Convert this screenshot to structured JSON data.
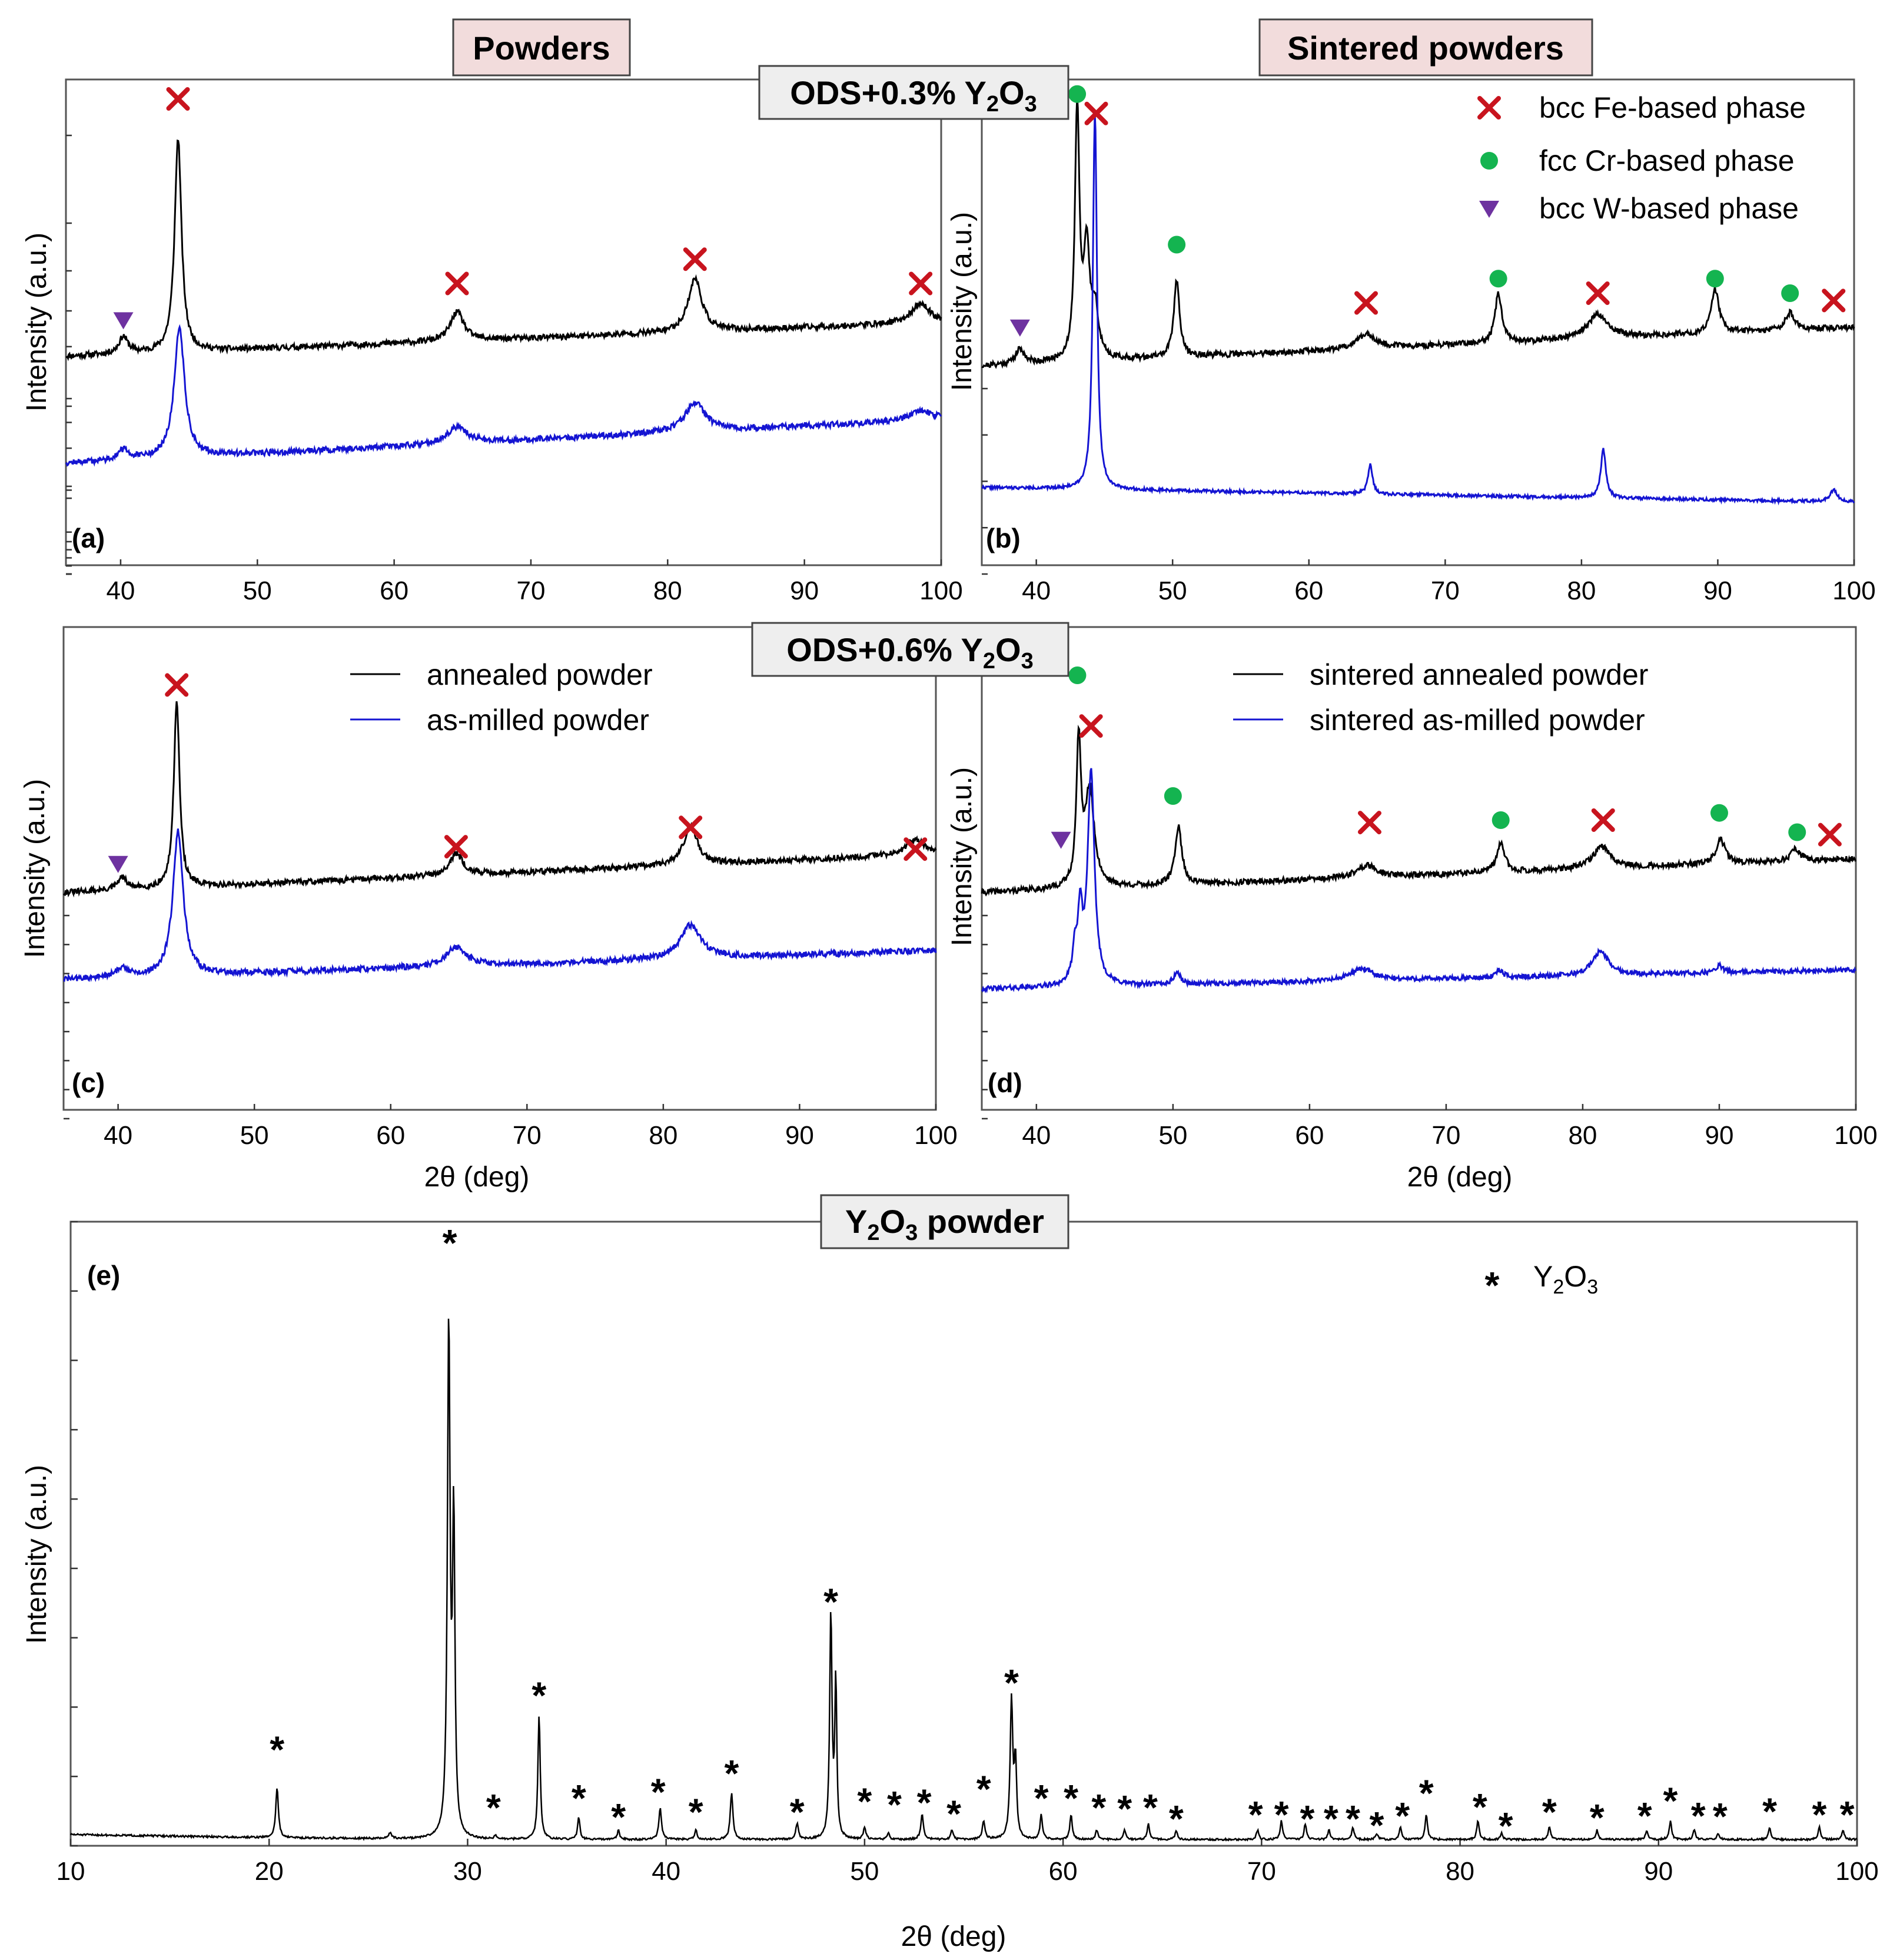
{
  "header_boxes": {
    "powders": "Powders",
    "sintered": "Sintered powders",
    "ods03": {
      "prefix": "ODS+0.3% Y",
      "sub1": "2",
      "mid": "O",
      "sub2": "3"
    },
    "ods06": {
      "prefix": "ODS+0.6% Y",
      "sub1": "2",
      "mid": "O",
      "sub2": "3"
    },
    "y2o3": {
      "prefix": "Y",
      "sub1": "2",
      "mid": "O",
      "sub2": "3",
      "suffix": " powder"
    }
  },
  "colors": {
    "black_series": "#000000",
    "blue_series": "#1414d2",
    "bcc_fe": "#c8141e",
    "fcc_cr": "#14b450",
    "bcc_w": "#6e32a0",
    "header_pink": "#f2dcdc",
    "header_gray": "#eeeeee"
  },
  "phase_legend": {
    "bcc_fe": "bcc Fe-based phase",
    "fcc_cr": "fcc Cr-based phase",
    "bcc_w": "bcc W-based phase"
  },
  "series_legend_c": {
    "black": "annealed powder",
    "blue": "as-milled powder"
  },
  "series_legend_d": {
    "black": "sintered annealed powder",
    "blue": "sintered as-milled powder"
  },
  "y2o3_legend": {
    "symbol": "*",
    "prefix": "Y",
    "sub1": "2",
    "mid": "O",
    "sub2": "3"
  },
  "chart_data": [
    {
      "id": "a",
      "panel_label": "(a)",
      "type": "line",
      "ylabel": "Intensity (a.u.)",
      "xlabel": "",
      "xlim": [
        36,
        100
      ],
      "xticks": [
        40,
        50,
        60,
        70,
        80,
        90,
        100
      ],
      "ylim": [
        0,
        100
      ],
      "series": [
        {
          "name": "annealed powder",
          "color": "black",
          "baseline": [
            [
              36,
              43
            ],
            [
              100,
              50
            ]
          ],
          "noise": 0.6,
          "seed": 11,
          "peaks": [
            [
              40.2,
              3.5,
              0.4
            ],
            [
              44.2,
              44,
              0.3
            ],
            [
              64.6,
              6,
              0.6
            ],
            [
              82.0,
              11,
              0.6
            ],
            [
              98.5,
              4,
              0.8
            ]
          ]
        },
        {
          "name": "as-milled powder",
          "color": "blue",
          "baseline": [
            [
              36,
              21
            ],
            [
              100,
              30
            ]
          ],
          "noise": 0.6,
          "seed": 12,
          "peaks": [
            [
              40.2,
              2,
              0.5
            ],
            [
              44.3,
              27,
              0.45
            ],
            [
              64.6,
              3.5,
              0.9
            ],
            [
              82.0,
              6,
              0.9
            ],
            [
              98.5,
              2,
              1.0
            ]
          ]
        }
      ],
      "markers": [
        {
          "phase": "bcc_w",
          "x": 40.2,
          "y": 50.5
        },
        {
          "phase": "bcc_fe",
          "x": 44.2,
          "y": 96
        },
        {
          "phase": "bcc_fe",
          "x": 64.6,
          "y": 58
        },
        {
          "phase": "bcc_fe",
          "x": 82.0,
          "y": 63
        },
        {
          "phase": "bcc_fe",
          "x": 98.5,
          "y": 58
        }
      ]
    },
    {
      "id": "b",
      "panel_label": "(b)",
      "type": "line",
      "ylabel": "Intensity (a.u.)",
      "xlabel": "",
      "xlim": [
        36,
        100
      ],
      "xticks": [
        40,
        50,
        60,
        70,
        80,
        90,
        100
      ],
      "ylim": [
        0,
        100
      ],
      "series": [
        {
          "name": "sintered annealed powder",
          "color": "black",
          "baseline": [
            [
              36,
              41
            ],
            [
              100,
              49
            ]
          ],
          "noise": 0.6,
          "seed": 21,
          "peaks": [
            [
              38.8,
              3,
              0.4
            ],
            [
              43.0,
              52,
              0.2
            ],
            [
              43.7,
              22,
              0.25
            ],
            [
              44.3,
              10,
              0.3
            ],
            [
              50.3,
              16,
              0.25
            ],
            [
              64.2,
              3,
              0.9
            ],
            [
              73.9,
              10,
              0.3
            ],
            [
              81.2,
              5,
              0.9
            ],
            [
              89.8,
              9,
              0.35
            ],
            [
              95.3,
              3.5,
              0.4
            ]
          ]
        },
        {
          "name": "sintered as-milled powder",
          "color": "blue",
          "baseline": [
            [
              36,
              16
            ],
            [
              100,
              13
            ]
          ],
          "noise": 0.3,
          "seed": 22,
          "peaks": [
            [
              44.3,
              78,
              0.18
            ],
            [
              64.5,
              6,
              0.2
            ],
            [
              81.6,
              10,
              0.22
            ],
            [
              98.5,
              2.5,
              0.3
            ]
          ]
        }
      ],
      "markers": [
        {
          "phase": "fcc_cr",
          "x": 43.0,
          "y": 97
        },
        {
          "phase": "bcc_fe",
          "x": 44.4,
          "y": 93
        },
        {
          "phase": "bcc_w",
          "x": 38.8,
          "y": 49
        },
        {
          "phase": "fcc_cr",
          "x": 50.3,
          "y": 66
        },
        {
          "phase": "bcc_fe",
          "x": 64.2,
          "y": 54
        },
        {
          "phase": "fcc_cr",
          "x": 73.9,
          "y": 59
        },
        {
          "phase": "bcc_fe",
          "x": 81.2,
          "y": 56
        },
        {
          "phase": "fcc_cr",
          "x": 89.8,
          "y": 59
        },
        {
          "phase": "fcc_cr",
          "x": 95.3,
          "y": 56
        },
        {
          "phase": "bcc_fe",
          "x": 98.5,
          "y": 54.5
        }
      ]
    },
    {
      "id": "c",
      "panel_label": "(c)",
      "type": "line",
      "ylabel": "Intensity (a.u.)",
      "xlabel": "2θ (deg)",
      "xlim": [
        36,
        100
      ],
      "xticks": [
        40,
        50,
        60,
        70,
        80,
        90,
        100
      ],
      "ylim": [
        0,
        100
      ],
      "series": [
        {
          "name": "annealed powder",
          "color": "black",
          "baseline": [
            [
              36,
              45
            ],
            [
              100,
              53
            ]
          ],
          "noise": 0.6,
          "seed": 31,
          "peaks": [
            [
              40.3,
              2.5,
              0.4
            ],
            [
              44.3,
              39,
              0.25
            ],
            [
              64.8,
              4.5,
              0.6
            ],
            [
              82.0,
              8,
              0.6
            ],
            [
              98.5,
              3,
              0.8
            ]
          ]
        },
        {
          "name": "as-milled powder",
          "color": "blue",
          "baseline": [
            [
              36,
              27
            ],
            [
              100,
              33
            ]
          ],
          "noise": 0.6,
          "seed": 32,
          "peaks": [
            [
              40.3,
              2,
              0.5
            ],
            [
              44.4,
              30,
              0.45
            ],
            [
              64.8,
              4,
              0.9
            ],
            [
              82.0,
              7,
              0.9
            ]
          ]
        }
      ],
      "markers": [
        {
          "phase": "bcc_w",
          "x": 40.0,
          "y": 51
        },
        {
          "phase": "bcc_fe",
          "x": 44.3,
          "y": 88
        },
        {
          "phase": "bcc_fe",
          "x": 64.8,
          "y": 54.5
        },
        {
          "phase": "bcc_fe",
          "x": 82.0,
          "y": 58.5
        },
        {
          "phase": "bcc_fe",
          "x": 98.5,
          "y": 54
        }
      ]
    },
    {
      "id": "d",
      "panel_label": "(d)",
      "type": "line",
      "ylabel": "Intensity (a.u.)",
      "xlabel": "2θ (deg)",
      "xlim": [
        36,
        100
      ],
      "xticks": [
        40,
        50,
        60,
        70,
        80,
        90,
        100
      ],
      "ylim": [
        0,
        100
      ],
      "series": [
        {
          "name": "sintered annealed powder",
          "color": "black",
          "baseline": [
            [
              36,
              45
            ],
            [
              100,
              52
            ]
          ],
          "noise": 0.6,
          "seed": 41,
          "peaks": [
            [
              43.1,
              30,
              0.2
            ],
            [
              43.9,
              20,
              0.4
            ],
            [
              50.4,
              12,
              0.3
            ],
            [
              64.2,
              2.5,
              0.9
            ],
            [
              74.0,
              6,
              0.35
            ],
            [
              81.4,
              4.5,
              0.8
            ],
            [
              90.1,
              5,
              0.4
            ],
            [
              95.6,
              2.5,
              0.4
            ]
          ]
        },
        {
          "name": "sintered as-milled powder",
          "color": "blue",
          "baseline": [
            [
              36,
              25
            ],
            [
              100,
              29
            ]
          ],
          "noise": 0.5,
          "seed": 42,
          "peaks": [
            [
              42.8,
              6,
              0.2
            ],
            [
              43.2,
              14,
              0.2
            ],
            [
              44.0,
              44,
              0.3
            ],
            [
              50.3,
              2.5,
              0.3
            ],
            [
              63.8,
              2.5,
              1.0
            ],
            [
              73.9,
              1.5,
              0.3
            ],
            [
              81.3,
              5,
              0.7
            ],
            [
              90.0,
              1.5,
              0.3
            ]
          ]
        }
      ],
      "markers": [
        {
          "phase": "fcc_cr",
          "x": 43.0,
          "y": 90
        },
        {
          "phase": "bcc_fe",
          "x": 44.0,
          "y": 79.5
        },
        {
          "phase": "bcc_w",
          "x": 41.8,
          "y": 56
        },
        {
          "phase": "fcc_cr",
          "x": 50.0,
          "y": 65
        },
        {
          "phase": "bcc_fe",
          "x": 64.4,
          "y": 59.5
        },
        {
          "phase": "fcc_cr",
          "x": 74.0,
          "y": 60
        },
        {
          "phase": "bcc_fe",
          "x": 81.5,
          "y": 60
        },
        {
          "phase": "fcc_cr",
          "x": 90.0,
          "y": 61.5
        },
        {
          "phase": "fcc_cr",
          "x": 95.7,
          "y": 57.5
        },
        {
          "phase": "bcc_fe",
          "x": 98.1,
          "y": 57
        }
      ]
    },
    {
      "id": "e",
      "panel_label": "(e)",
      "type": "line",
      "ylabel": "Intensity (a.u.)",
      "xlabel": "2θ (deg)",
      "xlim": [
        10,
        100
      ],
      "xticks": [
        10,
        20,
        30,
        40,
        50,
        60,
        70,
        80,
        90,
        100
      ],
      "ylim": [
        0,
        100
      ],
      "series": [
        {
          "name": "Y2O3 powder",
          "color": "black",
          "baseline": [
            [
              10,
              1.8
            ],
            [
              14,
              1.6
            ],
            [
              20,
              1.3
            ],
            [
              30,
              1.0
            ],
            [
              100,
              1.0
            ]
          ],
          "noise": 0.15,
          "seed": 51,
          "peaks": [
            [
              20.4,
              8,
              0.08
            ],
            [
              26.1,
              1,
              0.08
            ],
            [
              29.05,
              82,
              0.08
            ],
            [
              29.3,
              50,
              0.07
            ],
            [
              31.4,
              0.5,
              0.08
            ],
            [
              33.6,
              20,
              0.07
            ],
            [
              35.6,
              3.5,
              0.07
            ],
            [
              37.6,
              1.5,
              0.07
            ],
            [
              39.7,
              5,
              0.08
            ],
            [
              41.5,
              1.5,
              0.07
            ],
            [
              43.3,
              7.5,
              0.08
            ],
            [
              46.6,
              2.5,
              0.08
            ],
            [
              48.3,
              36,
              0.07
            ],
            [
              48.55,
              25,
              0.06
            ],
            [
              50.0,
              2,
              0.07
            ],
            [
              51.2,
              1,
              0.07
            ],
            [
              52.9,
              4,
              0.08
            ],
            [
              54.4,
              1.5,
              0.07
            ],
            [
              56.0,
              3,
              0.08
            ],
            [
              57.4,
              22,
              0.08
            ],
            [
              57.6,
              12,
              0.07
            ],
            [
              58.9,
              4,
              0.07
            ],
            [
              60.4,
              4,
              0.07
            ],
            [
              61.7,
              1.5,
              0.07
            ],
            [
              63.1,
              1.5,
              0.07
            ],
            [
              64.3,
              2.5,
              0.07
            ],
            [
              65.7,
              1.5,
              0.07
            ],
            [
              69.8,
              1.5,
              0.07
            ],
            [
              71.0,
              3,
              0.07
            ],
            [
              72.2,
              2.5,
              0.07
            ],
            [
              73.4,
              1.5,
              0.07
            ],
            [
              74.6,
              2,
              0.07
            ],
            [
              75.8,
              1,
              0.07
            ],
            [
              77.0,
              2,
              0.07
            ],
            [
              78.3,
              4,
              0.07
            ],
            [
              80.9,
              3,
              0.07
            ],
            [
              82.1,
              1,
              0.07
            ],
            [
              84.5,
              2,
              0.07
            ],
            [
              86.9,
              1.5,
              0.07
            ],
            [
              89.4,
              1.5,
              0.07
            ],
            [
              90.6,
              3,
              0.07
            ],
            [
              91.8,
              1.5,
              0.07
            ],
            [
              93.0,
              1,
              0.07
            ],
            [
              95.6,
              2,
              0.07
            ],
            [
              98.1,
              2,
              0.07
            ],
            [
              99.3,
              1.5,
              0.07
            ]
          ]
        }
      ],
      "star_positions": [
        [
          20.4,
          15.8
        ],
        [
          29.1,
          97
        ],
        [
          31.3,
          6.5
        ],
        [
          33.6,
          24.5
        ],
        [
          35.6,
          8
        ],
        [
          37.6,
          5
        ],
        [
          39.6,
          9
        ],
        [
          41.5,
          5.8
        ],
        [
          43.3,
          12
        ],
        [
          46.6,
          5.8
        ],
        [
          48.3,
          39.5
        ],
        [
          50.0,
          7.5
        ],
        [
          51.5,
          7
        ],
        [
          53.0,
          7.3
        ],
        [
          54.5,
          5.5
        ],
        [
          56.0,
          9.5
        ],
        [
          57.4,
          26.5
        ],
        [
          58.9,
          8
        ],
        [
          60.4,
          8
        ],
        [
          61.8,
          6.5
        ],
        [
          63.1,
          6.3
        ],
        [
          64.4,
          6.5
        ],
        [
          65.7,
          4.7
        ],
        [
          69.7,
          5.4
        ],
        [
          71.0,
          5.4
        ],
        [
          72.3,
          4.7
        ],
        [
          73.5,
          4.7
        ],
        [
          74.6,
          4.7
        ],
        [
          75.8,
          3.7
        ],
        [
          77.1,
          5.2
        ],
        [
          78.3,
          8.8
        ],
        [
          81.0,
          6.6
        ],
        [
          82.3,
          3.6
        ],
        [
          84.5,
          5.8
        ],
        [
          86.9,
          4.9
        ],
        [
          89.3,
          5.2
        ],
        [
          90.6,
          7.6
        ],
        [
          92.0,
          5.2
        ],
        [
          93.1,
          5.1
        ],
        [
          95.6,
          5.9
        ],
        [
          98.1,
          5.4
        ],
        [
          99.5,
          5.4
        ]
      ]
    }
  ]
}
